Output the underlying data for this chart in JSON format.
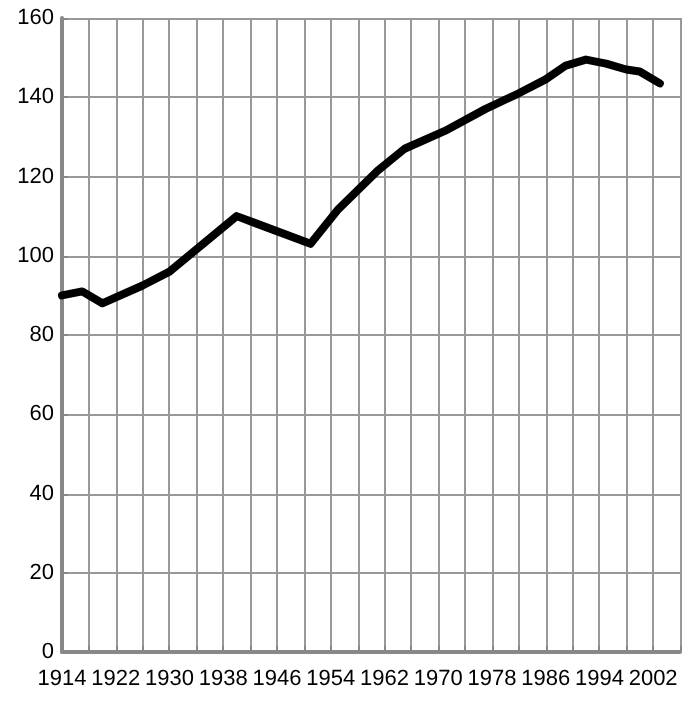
{
  "chart_data": {
    "type": "line",
    "x": [
      1914,
      1917,
      1920,
      1926,
      1930,
      1935,
      1940,
      1951,
      1955,
      1961,
      1965,
      1971,
      1977,
      1982,
      1986,
      1989,
      1992,
      1995,
      1998,
      2000,
      2003
    ],
    "series": [
      {
        "color": "#000000",
        "values": [
          90,
          91,
          88,
          92.5,
          96,
          103,
          110,
          103,
          111.5,
          121.5,
          127,
          131.5,
          137,
          141,
          144.5,
          148,
          149.5,
          148.5,
          147,
          146.5,
          143.5
        ]
      }
    ],
    "xlim": [
      1914,
      2006
    ],
    "xticks": [
      1914,
      {
        "value": 1918,
        "label": null
      },
      1922,
      {
        "value": 1926,
        "label": null
      },
      1930,
      {
        "value": 1934,
        "label": null
      },
      1938,
      {
        "value": 1942,
        "label": null
      },
      1946,
      {
        "value": 1950,
        "label": null
      },
      1954,
      {
        "value": 1958,
        "label": null
      },
      1962,
      {
        "value": 1966,
        "label": null
      },
      1970,
      {
        "value": 1974,
        "label": null
      },
      1978,
      {
        "value": 1982,
        "label": null
      },
      1986,
      {
        "value": 1990,
        "label": null
      },
      1994,
      {
        "value": 1998,
        "label": null
      },
      2002,
      {
        "value": 2006,
        "label": null
      }
    ],
    "ylim": [
      0,
      160
    ],
    "yticks": [
      0,
      20,
      40,
      60,
      80,
      100,
      120,
      140,
      160
    ],
    "grid": true,
    "marker": "none",
    "line_style": "solid"
  }
}
